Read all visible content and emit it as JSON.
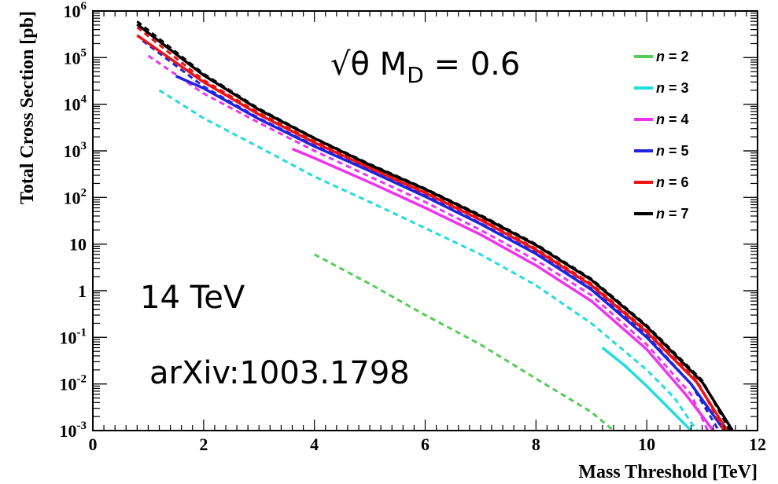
{
  "chart_data": {
    "type": "line",
    "xlabel": "Mass Threshold [TeV]",
    "ylabel": "Total Cross Section [pb]",
    "xlim": [
      0,
      12
    ],
    "ylim": [
      0.001,
      1000000
    ],
    "yscale": "log",
    "x_ticks": [
      0,
      2,
      4,
      6,
      8,
      10,
      12
    ],
    "y_ticks": [
      {
        "value": 0.001,
        "base": "10",
        "exp": "-3"
      },
      {
        "value": 0.01,
        "base": "10",
        "exp": "-2"
      },
      {
        "value": 0.1,
        "base": "10",
        "exp": "-1"
      },
      {
        "value": 1,
        "base": "1",
        "exp": ""
      },
      {
        "value": 10,
        "base": "10",
        "exp": ""
      },
      {
        "value": 100,
        "base": "10",
        "exp": "2"
      },
      {
        "value": 1000,
        "base": "10",
        "exp": "3"
      },
      {
        "value": 10000,
        "base": "10",
        "exp": "4"
      },
      {
        "value": 100000,
        "base": "10",
        "exp": "5"
      },
      {
        "value": 1000000,
        "base": "10",
        "exp": "6"
      }
    ],
    "annotations": {
      "main": {
        "prefix": "√θ M",
        "sub": "D",
        "suffix": " = 0.6"
      },
      "energy": "14 TeV",
      "reference": "arXiv:1003.1798"
    },
    "legend_position": "top-right",
    "series": [
      {
        "name": "n = 2",
        "n": "2",
        "color": "#55cc55",
        "dashed": {
          "x": [
            4.0,
            5.0,
            6.0,
            7.0,
            8.0,
            9.0,
            9.4
          ],
          "y": [
            6,
            1.4,
            0.3,
            0.07,
            0.013,
            0.0025,
            0.001
          ]
        },
        "solid": null
      },
      {
        "name": "n = 3",
        "n": "3",
        "color": "#22dddd",
        "dashed": {
          "x": [
            1.2,
            2.0,
            3.0,
            4.0,
            5.0,
            6.0,
            7.0,
            8.0,
            9.0,
            10.0,
            10.5,
            10.9
          ],
          "y": [
            20000,
            5000,
            1200,
            280,
            80,
            22,
            6,
            1.3,
            0.2,
            0.02,
            0.005,
            0.001
          ]
        },
        "solid": {
          "x": [
            9.2,
            9.6,
            10.0,
            10.4,
            10.8
          ],
          "y": [
            0.06,
            0.025,
            0.009,
            0.003,
            0.001
          ]
        }
      },
      {
        "name": "n = 4",
        "n": "4",
        "color": "#ee33ee",
        "dashed": {
          "x": [
            1.0,
            2.0,
            3.0,
            4.0,
            5.0,
            6.0,
            7.0,
            8.0,
            9.0,
            10.0,
            10.8,
            11.1
          ],
          "y": [
            110000,
            17000,
            4000,
            1000,
            280,
            80,
            20,
            4.5,
            0.8,
            0.07,
            0.006,
            0.001
          ]
        },
        "solid": {
          "x": [
            3.6,
            4.0,
            5.0,
            6.0,
            7.0,
            8.0,
            9.0,
            10.0,
            10.7,
            11.2
          ],
          "y": [
            1100,
            700,
            210,
            60,
            16,
            3.5,
            0.6,
            0.055,
            0.006,
            0.001
          ]
        }
      },
      {
        "name": "n = 5",
        "n": "5",
        "color": "#2222dd",
        "dashed": {
          "x": [
            0.9,
            2.0,
            3.0,
            4.0,
            5.0,
            6.0,
            7.0,
            8.0,
            9.0,
            10.0,
            10.8,
            11.3
          ],
          "y": [
            230000,
            24000,
            5000,
            1300,
            380,
            110,
            28,
            6.5,
            1.1,
            0.11,
            0.01,
            0.001
          ]
        },
        "solid": {
          "x": [
            1.5,
            2.0,
            3.0,
            4.0,
            5.0,
            6.0,
            7.0,
            8.0,
            9.0,
            10.0,
            10.8,
            11.4
          ],
          "y": [
            40000,
            22000,
            4800,
            1250,
            370,
            105,
            27,
            6.2,
            1.05,
            0.1,
            0.01,
            0.001
          ]
        }
      },
      {
        "name": "n = 6",
        "n": "6",
        "color": "#ee1111",
        "dashed": {
          "x": [
            0.8,
            2.0,
            3.0,
            4.0,
            5.0,
            6.0,
            7.0,
            8.0,
            9.0,
            10.0,
            10.9,
            11.4
          ],
          "y": [
            450000,
            33000,
            6500,
            1600,
            450,
            130,
            35,
            8,
            1.4,
            0.14,
            0.012,
            0.001
          ]
        },
        "solid": {
          "x": [
            0.8,
            2.0,
            3.0,
            4.0,
            5.0,
            6.0,
            7.0,
            8.0,
            9.0,
            10.0,
            10.9,
            11.45
          ],
          "y": [
            300000,
            30000,
            6000,
            1500,
            430,
            125,
            33,
            7.5,
            1.3,
            0.13,
            0.011,
            0.001
          ]
        }
      },
      {
        "name": "n = 7",
        "n": "7",
        "color": "#000000",
        "dashed": {
          "x": [
            0.8,
            2.0,
            3.0,
            4.0,
            5.0,
            6.0,
            7.0,
            8.0,
            9.0,
            10.0,
            11.0,
            11.5
          ],
          "y": [
            600000,
            45000,
            8000,
            1900,
            520,
            155,
            42,
            10,
            1.8,
            0.18,
            0.012,
            0.001
          ]
        },
        "solid": {
          "x": [
            0.8,
            2.0,
            3.0,
            4.0,
            5.0,
            6.0,
            7.0,
            8.0,
            9.0,
            10.0,
            11.0,
            11.55
          ],
          "y": [
            520000,
            42000,
            7600,
            1850,
            500,
            150,
            40,
            9.5,
            1.7,
            0.17,
            0.011,
            0.001
          ]
        }
      }
    ]
  }
}
